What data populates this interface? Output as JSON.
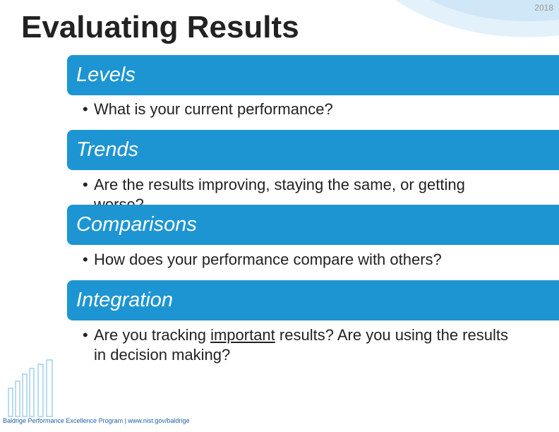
{
  "header": {
    "title": "Evaluating Results",
    "year": "2018"
  },
  "sections": [
    {
      "heading": "Levels",
      "bullet": [
        "What is your current performance?"
      ]
    },
    {
      "heading": "Trends",
      "bullet": [
        "Are the results improving, staying the same, or getting worse?"
      ]
    },
    {
      "heading": "Comparisons",
      "bullet": [
        "How does your performance compare with others?"
      ]
    },
    {
      "heading": "Integration",
      "bullet": [
        "Are you tracking ",
        "important",
        " results? Are you using the results in decision making?"
      ]
    }
  ],
  "footer": {
    "text": "Baldrige Performance Excellence Program | www.nist.gov/baldrige"
  }
}
